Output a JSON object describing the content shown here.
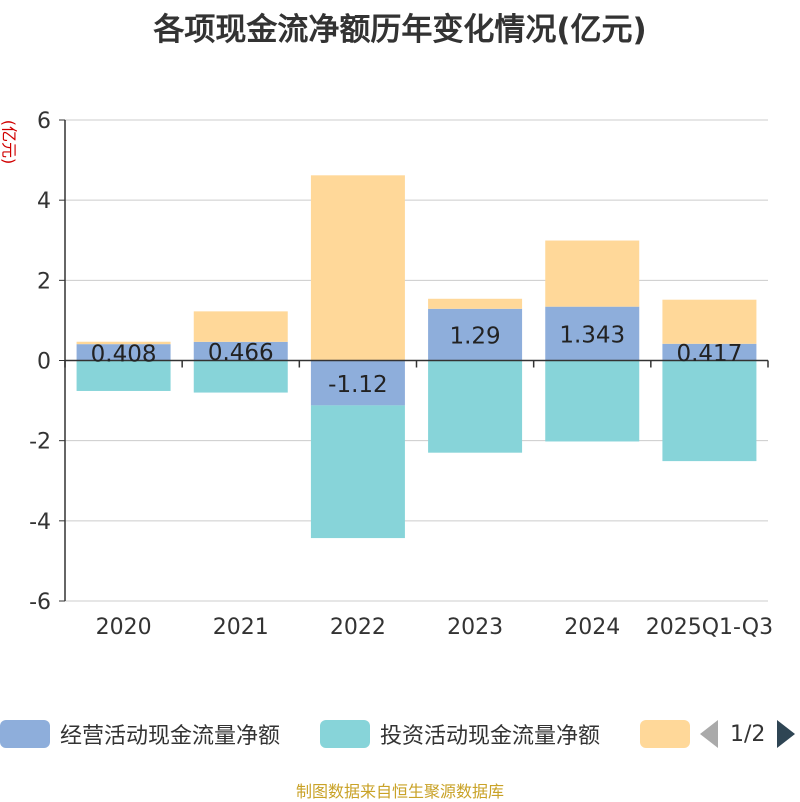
{
  "chart_data": {
    "type": "bar",
    "stacked": true,
    "title": "各项现金流净额历年变化情况(亿元)",
    "ylabel": "(亿元)",
    "xlabel": "",
    "ylim": [
      -6,
      6
    ],
    "yticks": [
      -6,
      -4,
      -2,
      0,
      2,
      4,
      6
    ],
    "grid": true,
    "categories": [
      "2020",
      "2021",
      "2022",
      "2023",
      "2024",
      "2025Q1-Q3"
    ],
    "series": [
      {
        "name": "经营活动现金流量净额",
        "color": "#8eaedb",
        "values": [
          0.408,
          0.466,
          -1.12,
          1.29,
          1.343,
          0.417
        ],
        "labels": [
          "0.408",
          "0.466",
          "-1.12",
          "1.29",
          "1.343",
          "0.417"
        ]
      },
      {
        "name": "投资活动现金流量净额",
        "color": "#87d4d9",
        "values": [
          -0.76,
          -0.8,
          -3.31,
          -2.3,
          -2.02,
          -2.51
        ]
      },
      {
        "name": "",
        "color": "#ffd899",
        "values": [
          0.06,
          0.76,
          4.62,
          0.25,
          1.65,
          1.1
        ]
      }
    ],
    "legend_placement": "bottom"
  },
  "legend": {
    "page": "1/2"
  },
  "source": "制图数据来自恒生聚源数据库"
}
